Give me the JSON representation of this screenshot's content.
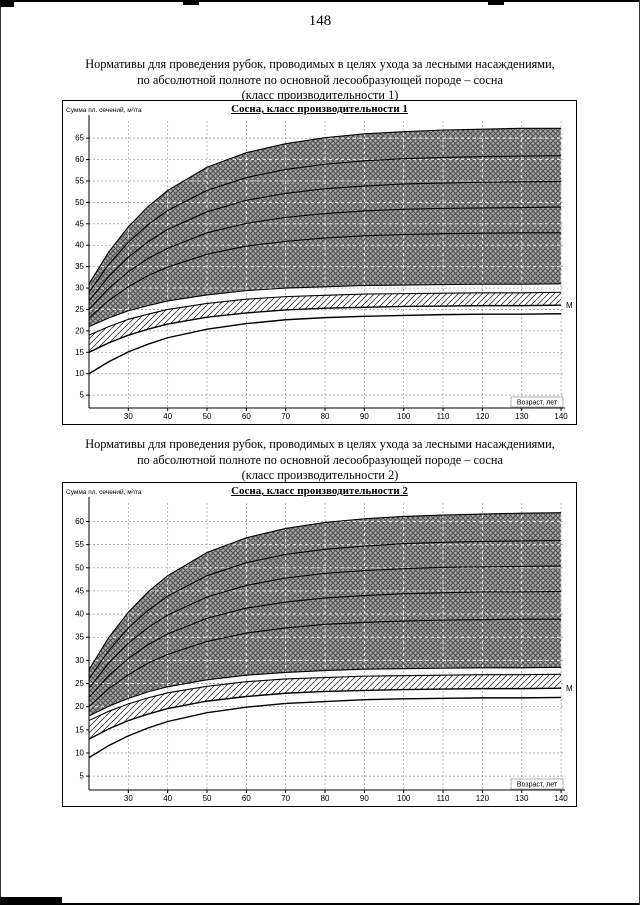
{
  "page": {
    "number": "148"
  },
  "sections": [
    {
      "caption_lines": [
        "Нормативы для проведения рубок, проводимых в целях ухода за лесными насаждениями,",
        "по абсолютной полноте по основной лесообразующей породе – сосна",
        "(класс производительности 1)"
      ]
    },
    {
      "caption_lines": [
        "Нормативы для проведения рубок, проводимых в целях ухода за лесными насаждениями,",
        "по абсолютной полноте по основной лесообразующей породе – сосна",
        "(класс производительности 2)"
      ]
    }
  ],
  "chart_data": [
    {
      "type": "area",
      "title": "Сосна, класс производительности 1",
      "ylabel": "Сумма пл. сечений, м²/га",
      "xlabel": "Возраст, лет",
      "marker_label": "М",
      "grid": "dashed",
      "legend_position": "none",
      "xlim": [
        20,
        141
      ],
      "ylim": [
        2,
        69
      ],
      "xticks": [
        30,
        40,
        50,
        60,
        70,
        80,
        90,
        100,
        110,
        120,
        130,
        140
      ],
      "yticks": [
        5,
        10,
        15,
        20,
        25,
        30,
        35,
        40,
        45,
        50,
        55,
        60,
        65
      ],
      "x": [
        20,
        25,
        30,
        35,
        40,
        50,
        60,
        70,
        80,
        90,
        100,
        110,
        120,
        130,
        140
      ],
      "series": [
        {
          "name": "upper_boundary",
          "values": [
            31,
            38.4,
            44.3,
            49,
            52.8,
            58.2,
            61.6,
            63.7,
            65.1,
            66,
            66.5,
            66.9,
            67.1,
            67.3,
            67.3
          ]
        },
        {
          "name": "curve_2",
          "values": [
            29,
            35.5,
            40.7,
            44.8,
            48.1,
            52.8,
            55.8,
            57.7,
            58.9,
            59.7,
            60.2,
            60.5,
            60.7,
            60.8,
            60.9
          ]
        },
        {
          "name": "curve_3",
          "values": [
            27,
            32.7,
            37.2,
            40.8,
            43.7,
            47.8,
            50.5,
            52.1,
            53.2,
            53.8,
            54.3,
            54.5,
            54.7,
            54.8,
            54.9
          ]
        },
        {
          "name": "curve_4",
          "values": [
            25,
            29.9,
            33.8,
            36.9,
            39.3,
            42.9,
            45.1,
            46.5,
            47.4,
            48,
            48.4,
            48.6,
            48.7,
            48.8,
            48.9
          ]
        },
        {
          "name": "curve_5",
          "values": [
            23,
            27.1,
            30.3,
            32.9,
            34.9,
            37.9,
            39.8,
            40.9,
            41.7,
            42.2,
            42.5,
            42.7,
            42.8,
            42.9,
            42.9
          ]
        },
        {
          "name": "shaded_zone_lower",
          "values": [
            21,
            23,
            24.7,
            25.9,
            27,
            28.4,
            29.4,
            30,
            30.3,
            30.6,
            30.7,
            30.8,
            30.9,
            30.9,
            31
          ]
        },
        {
          "name": "hatched_zone_upper",
          "values": [
            19,
            21,
            22.7,
            23.9,
            25,
            26.4,
            27.4,
            28,
            28.3,
            28.6,
            28.7,
            28.8,
            28.9,
            28.9,
            29
          ]
        },
        {
          "name": "M_minimum_line",
          "values": [
            15,
            17.2,
            19,
            20.4,
            21.6,
            23.2,
            24.2,
            24.9,
            25.3,
            25.5,
            25.7,
            25.8,
            25.9,
            25.9,
            26
          ]
        },
        {
          "name": "lower_curve",
          "values": [
            10,
            12.8,
            15.1,
            16.9,
            18.4,
            20.4,
            21.7,
            22.6,
            23.1,
            23.4,
            23.6,
            23.8,
            23.9,
            23.9,
            24
          ]
        }
      ],
      "dark_zone_between": [
        0,
        5
      ],
      "hatch_zone_between": [
        6,
        7
      ]
    },
    {
      "type": "area",
      "title": "Сосна, класс производительности 2",
      "ylabel": "Сумма пл. сечений, м²/га",
      "xlabel": "Возраст, лет",
      "marker_label": "М",
      "grid": "dashed",
      "legend_position": "none",
      "xlim": [
        20,
        141
      ],
      "ylim": [
        2,
        64
      ],
      "xticks": [
        30,
        40,
        50,
        60,
        70,
        80,
        90,
        100,
        110,
        120,
        130,
        140
      ],
      "yticks": [
        5,
        10,
        15,
        20,
        25,
        30,
        35,
        40,
        45,
        50,
        55,
        60
      ],
      "x": [
        20,
        25,
        30,
        35,
        40,
        50,
        60,
        70,
        80,
        90,
        100,
        110,
        120,
        130,
        140
      ],
      "series": [
        {
          "name": "upper_boundary",
          "values": [
            28,
            34.9,
            40.4,
            44.8,
            48.3,
            53.3,
            56.5,
            58.5,
            59.8,
            60.6,
            61.1,
            61.4,
            61.6,
            61.8,
            61.9
          ]
        },
        {
          "name": "curve_2",
          "values": [
            26,
            32.1,
            37,
            40.8,
            43.9,
            48.3,
            51.1,
            52.9,
            54,
            54.7,
            55.2,
            55.5,
            55.7,
            55.8,
            55.9
          ]
        },
        {
          "name": "curve_3",
          "values": [
            24,
            29.4,
            33.7,
            37.1,
            39.8,
            43.7,
            46.2,
            47.8,
            48.8,
            49.4,
            49.8,
            50.1,
            50.2,
            50.3,
            50.4
          ]
        },
        {
          "name": "curve_4",
          "values": [
            22,
            26.7,
            30.4,
            33.4,
            35.7,
            39.1,
            41.3,
            42.6,
            43.5,
            44,
            44.4,
            44.6,
            44.8,
            44.8,
            44.9
          ]
        },
        {
          "name": "curve_5",
          "values": [
            20,
            23.9,
            26.9,
            29.4,
            31.3,
            34.1,
            35.9,
            37,
            37.8,
            38.2,
            38.5,
            38.7,
            38.8,
            38.9,
            38.9
          ]
        },
        {
          "name": "shaded_zone_lower",
          "values": [
            18,
            20.1,
            21.8,
            23.2,
            24.3,
            25.8,
            26.8,
            27.4,
            27.8,
            28.1,
            28.2,
            28.3,
            28.4,
            28.4,
            28.5
          ]
        },
        {
          "name": "hatched_zone_upper",
          "values": [
            17,
            19,
            20.6,
            21.9,
            23,
            24.4,
            25.4,
            26,
            26.3,
            26.6,
            26.7,
            26.8,
            26.9,
            26.9,
            27
          ]
        },
        {
          "name": "M_minimum_line",
          "values": [
            13,
            15.2,
            17,
            18.4,
            19.6,
            21.2,
            22.2,
            22.9,
            23.3,
            23.5,
            23.7,
            23.8,
            23.9,
            23.9,
            24
          ]
        },
        {
          "name": "lower_curve",
          "values": [
            9,
            11.6,
            13.7,
            15.4,
            16.8,
            18.7,
            19.9,
            20.7,
            21.1,
            21.5,
            21.7,
            21.8,
            21.9,
            21.9,
            22
          ]
        }
      ],
      "dark_zone_between": [
        0,
        5
      ],
      "hatch_zone_between": [
        6,
        7
      ]
    }
  ]
}
